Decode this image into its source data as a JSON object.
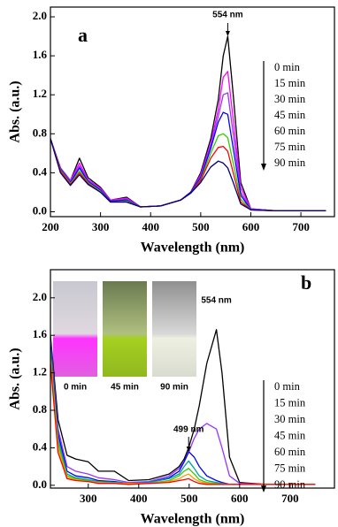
{
  "chart_data": [
    {
      "type": "line",
      "panel_label": "a",
      "x_label": "Wavelength (nm)",
      "y_label": "Abs. (a.u.)",
      "annotations": [
        "554 nm"
      ],
      "x": [
        200,
        220,
        240,
        258,
        275,
        300,
        320,
        352,
        380,
        420,
        460,
        480,
        500,
        520,
        535,
        545,
        554,
        565,
        580,
        600,
        650,
        750
      ],
      "series": [
        {
          "name": "0 min",
          "color": "#000000",
          "values": [
            0.75,
            0.45,
            0.32,
            0.55,
            0.35,
            0.25,
            0.12,
            0.15,
            0.05,
            0.06,
            0.12,
            0.2,
            0.4,
            0.75,
            1.15,
            1.6,
            1.8,
            1.2,
            0.3,
            0.03,
            0.01,
            0.01
          ]
        },
        {
          "name": "15 min",
          "color": "#ff00ff",
          "values": [
            0.75,
            0.45,
            0.32,
            0.5,
            0.33,
            0.24,
            0.12,
            0.14,
            0.05,
            0.06,
            0.12,
            0.2,
            0.38,
            0.7,
            1.05,
            1.38,
            1.44,
            0.95,
            0.25,
            0.03,
            0.01,
            0.01
          ]
        },
        {
          "name": "30 min",
          "color": "#9933ff",
          "values": [
            0.75,
            0.45,
            0.31,
            0.47,
            0.32,
            0.23,
            0.11,
            0.13,
            0.05,
            0.06,
            0.12,
            0.2,
            0.36,
            0.68,
            0.98,
            1.2,
            1.22,
            0.8,
            0.2,
            0.03,
            0.01,
            0.01
          ]
        },
        {
          "name": "45 min",
          "color": "#0000ff",
          "values": [
            0.75,
            0.44,
            0.3,
            0.45,
            0.31,
            0.22,
            0.11,
            0.12,
            0.05,
            0.06,
            0.12,
            0.2,
            0.35,
            0.65,
            0.92,
            1.02,
            1.0,
            0.65,
            0.17,
            0.02,
            0.01,
            0.01
          ]
        },
        {
          "name": "60 min",
          "color": "#33cc00",
          "values": [
            0.75,
            0.43,
            0.29,
            0.42,
            0.3,
            0.21,
            0.1,
            0.11,
            0.05,
            0.06,
            0.12,
            0.19,
            0.33,
            0.6,
            0.78,
            0.8,
            0.76,
            0.5,
            0.13,
            0.02,
            0.01,
            0.01
          ]
        },
        {
          "name": "75 min",
          "color": "#ff0000",
          "values": [
            0.75,
            0.42,
            0.28,
            0.4,
            0.29,
            0.2,
            0.1,
            0.1,
            0.05,
            0.06,
            0.12,
            0.19,
            0.32,
            0.55,
            0.66,
            0.67,
            0.62,
            0.4,
            0.1,
            0.02,
            0.01,
            0.01
          ]
        },
        {
          "name": "90 min",
          "color": "#000080",
          "values": [
            0.75,
            0.4,
            0.27,
            0.38,
            0.28,
            0.2,
            0.1,
            0.1,
            0.05,
            0.06,
            0.12,
            0.19,
            0.3,
            0.46,
            0.52,
            0.5,
            0.45,
            0.3,
            0.08,
            0.02,
            0.01,
            0.01
          ]
        }
      ],
      "xlim": [
        200,
        767
      ],
      "ylim": [
        -0.05,
        2.1
      ],
      "xticks": [
        200,
        300,
        400,
        500,
        600,
        700
      ],
      "yticks": [
        {
          "value": 0,
          "label": "0.0"
        },
        0.4,
        0.8,
        1.2,
        1.6,
        {
          "value": 2,
          "label": "2.0"
        }
      ]
    },
    {
      "type": "line",
      "panel_label": "b",
      "x_label": "Wavelength (nm)",
      "y_label": "Abs. (a.u.)",
      "annotations": [
        "554 nm",
        "499 nm"
      ],
      "inset_labels": [
        "0 min",
        "45 min",
        "90 min"
      ],
      "x": [
        225,
        240,
        258,
        275,
        300,
        320,
        352,
        380,
        420,
        460,
        480,
        490,
        499,
        510,
        520,
        535,
        554,
        565,
        580,
        600,
        650,
        750
      ],
      "series": [
        {
          "name": "0 min",
          "color": "#000000",
          "values": [
            1.6,
            0.7,
            0.32,
            0.28,
            0.25,
            0.15,
            0.15,
            0.05,
            0.06,
            0.12,
            0.2,
            0.28,
            0.4,
            0.6,
            0.85,
            1.3,
            1.66,
            1.2,
            0.3,
            0.03,
            0.01,
            0.01
          ]
        },
        {
          "name": "15 min",
          "color": "#9933ff",
          "values": [
            1.55,
            0.6,
            0.2,
            0.15,
            0.12,
            0.08,
            0.06,
            0.03,
            0.04,
            0.1,
            0.18,
            0.25,
            0.35,
            0.5,
            0.6,
            0.66,
            0.6,
            0.4,
            0.1,
            0.02,
            0.01,
            0.01
          ]
        },
        {
          "name": "30 min",
          "color": "#0000ff",
          "values": [
            1.5,
            0.55,
            0.15,
            0.1,
            0.08,
            0.05,
            0.04,
            0.02,
            0.03,
            0.08,
            0.15,
            0.25,
            0.36,
            0.3,
            0.2,
            0.1,
            0.05,
            0.03,
            0.01,
            0.01,
            0.01,
            0.01
          ]
        },
        {
          "name": "45 min",
          "color": "#00a0a0",
          "values": [
            1.45,
            0.5,
            0.12,
            0.08,
            0.06,
            0.04,
            0.03,
            0.02,
            0.03,
            0.07,
            0.12,
            0.2,
            0.26,
            0.18,
            0.1,
            0.05,
            0.03,
            0.02,
            0.01,
            0.01,
            0.01,
            0.01
          ]
        },
        {
          "name": "60 min",
          "color": "#33cc00",
          "values": [
            1.4,
            0.45,
            0.1,
            0.07,
            0.05,
            0.03,
            0.03,
            0.02,
            0.02,
            0.05,
            0.1,
            0.15,
            0.18,
            0.12,
            0.06,
            0.03,
            0.02,
            0.01,
            0.01,
            0.01,
            0.01,
            0.01
          ]
        },
        {
          "name": "75 min",
          "color": "#ff9900",
          "values": [
            1.35,
            0.4,
            0.08,
            0.06,
            0.04,
            0.03,
            0.02,
            0.02,
            0.02,
            0.04,
            0.07,
            0.1,
            0.12,
            0.07,
            0.04,
            0.02,
            0.01,
            0.01,
            0.01,
            0.01,
            0.01,
            0.01
          ]
        },
        {
          "name": "90 min",
          "color": "#ff0000",
          "values": [
            1.3,
            0.35,
            0.07,
            0.05,
            0.04,
            0.02,
            0.02,
            0.01,
            0.02,
            0.03,
            0.05,
            0.06,
            0.07,
            0.04,
            0.02,
            0.01,
            0.01,
            0.01,
            0.01,
            0.01,
            0.01,
            0.01
          ]
        }
      ],
      "xlim": [
        225,
        788
      ],
      "ylim": [
        -0.03,
        2.3
      ],
      "xticks": [
        300,
        400,
        500,
        600,
        700
      ],
      "yticks": [
        {
          "value": 0,
          "label": "0.0"
        },
        0.4,
        0.8,
        1.2,
        1.6,
        {
          "value": 2,
          "label": "2.0"
        }
      ]
    }
  ]
}
